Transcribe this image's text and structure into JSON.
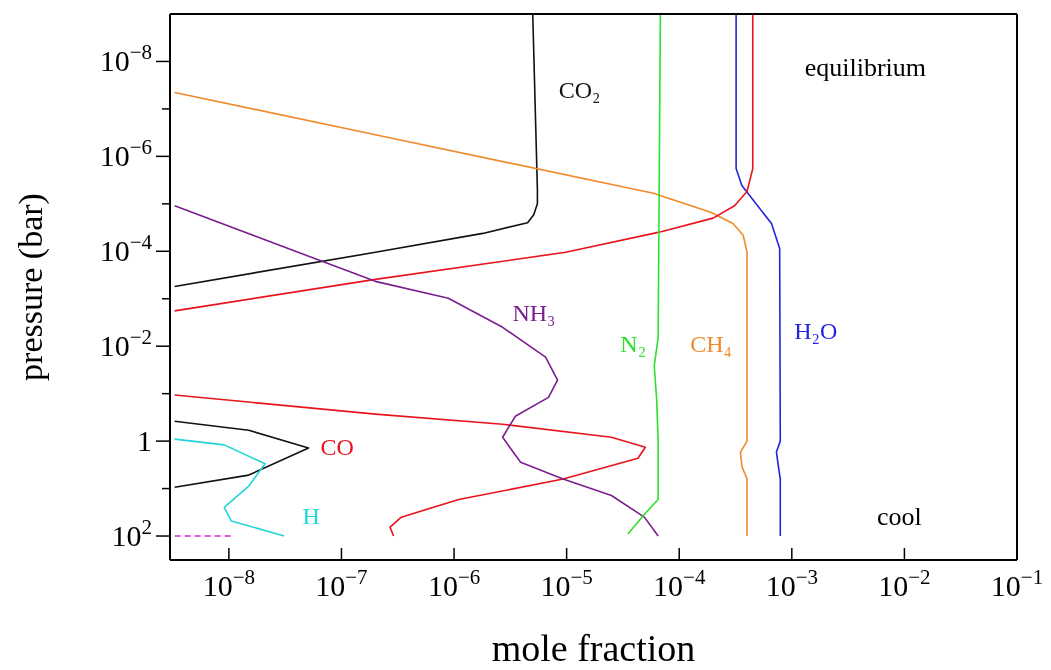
{
  "chart_data": {
    "type": "line",
    "xlabel": "mole fraction",
    "ylabel": "pressure (bar)",
    "log": "xy",
    "xlim": [
      3e-09,
      0.1
    ],
    "xticks": [
      {
        "value": 1e-08,
        "label": "10$^{−8}$"
      },
      {
        "value": 1e-07,
        "label": "10$^{−7}$"
      },
      {
        "value": 1e-06,
        "label": "10$^{−6}$"
      },
      {
        "value": 1e-05,
        "label": "10$^{−5}$"
      },
      {
        "value": 0.0001,
        "label": "10$^{−4}$"
      },
      {
        "value": 0.001,
        "label": "10$^{−3}$"
      },
      {
        "value": 0.01,
        "label": "10$^{−2}$"
      },
      {
        "value": 0.1,
        "label": "10$^{−1}$"
      }
    ],
    "ylim": [
      320,
      1e-09
    ],
    "yticks": [
      {
        "value": 1e-08,
        "label": "10$^{−8}$"
      },
      {
        "value": 1e-07,
        "label": null
      },
      {
        "value": 1e-06,
        "label": "10$^{−6}$"
      },
      {
        "value": 1e-05,
        "label": null
      },
      {
        "value": 0.0001,
        "label": "10$^{−4}$"
      },
      {
        "value": 0.001,
        "label": null
      },
      {
        "value": 0.01,
        "label": "10$^{−2}$"
      },
      {
        "value": 0.1,
        "label": null
      },
      1,
      {
        "value": 10,
        "label": null
      },
      {
        "value": 100,
        "label": "10$^{2}$"
      }
    ],
    "annotations": [
      "equilibrium",
      "cool"
    ],
    "series": [
      {
        "name": "CO₂",
        "color": "#111111",
        "x": [
          5e-06,
          5.5e-06,
          5.5e-06,
          5.1e-06,
          4.5e-06,
          1.8e-06,
          2e-07,
          3.3e-09,
          null,
          3.3e-09,
          1.5e-08,
          5.1e-08,
          1.5e-08,
          3.3e-09
        ],
        "values": [
          1e-09,
          5.2e-06,
          1e-05,
          1.7e-05,
          2.5e-05,
          4.2e-05,
          0.000105,
          0.00055,
          null,
          0.38,
          0.59,
          1.4,
          5.2,
          9.4
        ]
      },
      {
        "name": "CH₄",
        "color": "#f08a2a",
        "x": [
          3.3e-09,
          2e-07,
          5.9e-05,
          0.00019,
          0.0003,
          0.00037,
          0.0004,
          0.0004,
          0.00035,
          0.00036,
          0.0004,
          0.0004
        ],
        "values": [
          4.5e-08,
          3.5e-07,
          6e-06,
          1.5e-05,
          2.6e-05,
          4.6e-05,
          0.000105,
          1,
          1.7,
          3.4,
          6.3,
          100
        ]
      },
      {
        "name": "H₂O",
        "color": "#2424dc",
        "x": [
          0.00032,
          0.00032,
          0.00036,
          0.00047,
          0.00066,
          0.00078,
          0.00079,
          0.00073,
          0.00076,
          0.00079,
          0.00079
        ],
        "values": [
          1e-09,
          1.8e-06,
          4.1e-06,
          9.3e-06,
          2.6e-05,
          8.7e-05,
          1,
          1.7,
          3.4,
          6.3,
          100
        ]
      },
      {
        "name": "CO",
        "color": "#e8141c",
        "x": [
          0.00045,
          0.00045,
          0.0004,
          0.00031,
          0.0002,
          6.5e-05,
          9.8e-06,
          2e-07,
          3.3e-09,
          null,
          3.3e-09,
          2e-07,
          2.7e-06,
          2.5e-05,
          5e-05,
          4.3e-05,
          9.3e-06,
          1.1e-06,
          3.4e-07,
          2.7e-07,
          2.9e-07
        ],
        "values": [
          1e-09,
          1.8e-06,
          5.5e-06,
          1.1e-05,
          2e-05,
          4e-05,
          0.000105,
          0.00039,
          0.0018,
          null,
          0.107,
          0.27,
          0.44,
          0.83,
          1.35,
          2.3,
          6.3,
          17,
          40,
          65,
          100
        ]
      },
      {
        "name": "NH₃",
        "color": "#7b1f8e",
        "x": [
          3.3e-09,
          2e-07,
          8.9e-07,
          2.7e-06,
          6.5e-06,
          8.3e-06,
          6.9e-06,
          3.5e-06,
          2.7e-06,
          3.9e-06,
          9.3e-06,
          2.5e-05,
          4.9e-05,
          6.5e-05
        ],
        "values": [
          1.1e-05,
          0.00043,
          0.00098,
          0.004,
          0.017,
          0.052,
          0.12,
          0.3,
          0.83,
          2.8,
          6.3,
          14,
          40,
          100
        ]
      },
      {
        "name": "N₂",
        "color": "#2ee02e",
        "x": [
          6.8e-05,
          6.5e-05,
          6e-05,
          6.3e-05,
          6.5e-05,
          6.5e-05,
          5e-05,
          3.5e-05
        ],
        "values": [
          1e-09,
          0.0065,
          0.026,
          0.13,
          1,
          17,
          33,
          91
        ]
      },
      {
        "name": "H",
        "color": "#22d4d8",
        "x": [
          3.3e-09,
          9.1e-09,
          2.1e-08,
          1.5e-08,
          9.1e-09,
          1.05e-08,
          3.1e-08
        ],
        "values": [
          0.91,
          1.2,
          3.0,
          8.9,
          25,
          48,
          100
        ]
      },
      {
        "color": "#e020e0",
        "line_style": "dashed",
        "x": [
          3.3e-09,
          1.1e-08
        ],
        "values": [
          100,
          100
        ]
      }
    ]
  }
}
